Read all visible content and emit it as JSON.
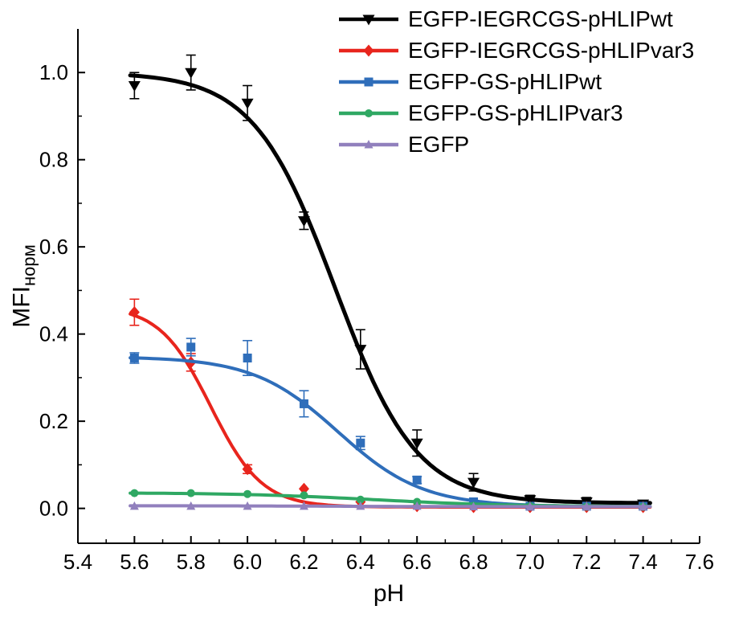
{
  "figure": {
    "background": "#ffffff",
    "axis_color": "#000000",
    "text_color": "#000000"
  },
  "chart_data": {
    "type": "line",
    "title": "",
    "xlabel": "pH",
    "ylabel_main": "MFI",
    "ylabel_sub": "норм",
    "xlim": [
      5.4,
      7.6
    ],
    "ylim": [
      -0.08,
      1.1
    ],
    "x_ticks": [
      5.4,
      5.6,
      5.8,
      6.0,
      6.2,
      6.4,
      6.6,
      6.8,
      7.0,
      7.2,
      7.4,
      7.6
    ],
    "y_ticks": [
      0.0,
      0.2,
      0.4,
      0.6,
      0.8,
      1.0
    ],
    "grid": false,
    "legend_position": "top-right",
    "x": [
      5.6,
      5.8,
      6.0,
      6.2,
      6.4,
      6.6,
      6.8,
      7.0,
      7.2,
      7.4
    ],
    "series": [
      {
        "name": "EGFP-IEGRCGS-pHLIPwt",
        "color": "#000000",
        "marker": "triangle-down",
        "values": [
          0.97,
          1.0,
          0.93,
          0.66,
          0.365,
          0.15,
          0.06,
          0.02,
          0.015,
          0.01
        ],
        "errors": [
          0.03,
          0.04,
          0.04,
          0.02,
          0.045,
          0.03,
          0.02,
          0.01,
          0.01,
          0.003
        ],
        "fit": {
          "top": 1.0,
          "bottom": 0.012,
          "pK": 6.31,
          "hill": 3.0
        }
      },
      {
        "name": "EGFP-IEGRCGS-pHLIPvar3",
        "color": "#e8251d",
        "marker": "diamond",
        "values": [
          0.45,
          0.335,
          0.09,
          0.045,
          0.015,
          0.005,
          0.003,
          0.003,
          0.003,
          0.003
        ],
        "errors": [
          0.03,
          0.02,
          0.01,
          0.005,
          0.004,
          0.003,
          0.002,
          0.002,
          0.002,
          0.002
        ],
        "fit": {
          "top": 0.465,
          "bottom": 0.003,
          "pK": 5.87,
          "hill": 4.8
        }
      },
      {
        "name": "EGFP-GS-pHLIPwt",
        "color": "#2f6eba",
        "marker": "square",
        "values": [
          0.345,
          0.37,
          0.345,
          0.24,
          0.15,
          0.065,
          0.015,
          0.005,
          0.005,
          0.005
        ],
        "errors": [
          0.012,
          0.02,
          0.04,
          0.03,
          0.015,
          0.008,
          0.004,
          0.003,
          0.003,
          0.003
        ],
        "fit": {
          "top": 0.348,
          "bottom": 0.004,
          "pK": 6.32,
          "hill": 2.9
        }
      },
      {
        "name": "EGFP-GS-pHLIPvar3",
        "color": "#2fa863",
        "marker": "circle",
        "values": [
          0.035,
          0.035,
          0.033,
          0.03,
          0.02,
          0.015,
          0.006,
          0.005,
          0.004,
          0.004
        ],
        "errors": [
          0.004,
          0.004,
          0.004,
          0.004,
          0.004,
          0.003,
          0.002,
          0.002,
          0.002,
          0.002
        ],
        "fit": {
          "top": 0.036,
          "bottom": 0.004,
          "pK": 6.45,
          "hill": 1.8
        }
      },
      {
        "name": "EGFP",
        "color": "#9180bd",
        "marker": "triangle-up",
        "values": [
          0.005,
          0.005,
          0.005,
          0.005,
          0.005,
          0.005,
          0.004,
          0.004,
          0.004,
          0.004
        ],
        "errors": [
          0.003,
          0.003,
          0.003,
          0.003,
          0.003,
          0.002,
          0.002,
          0.002,
          0.002,
          0.002
        ],
        "fit": {
          "top": 0.006,
          "bottom": 0.004,
          "pK": 6.3,
          "hill": 2.0
        }
      }
    ]
  }
}
